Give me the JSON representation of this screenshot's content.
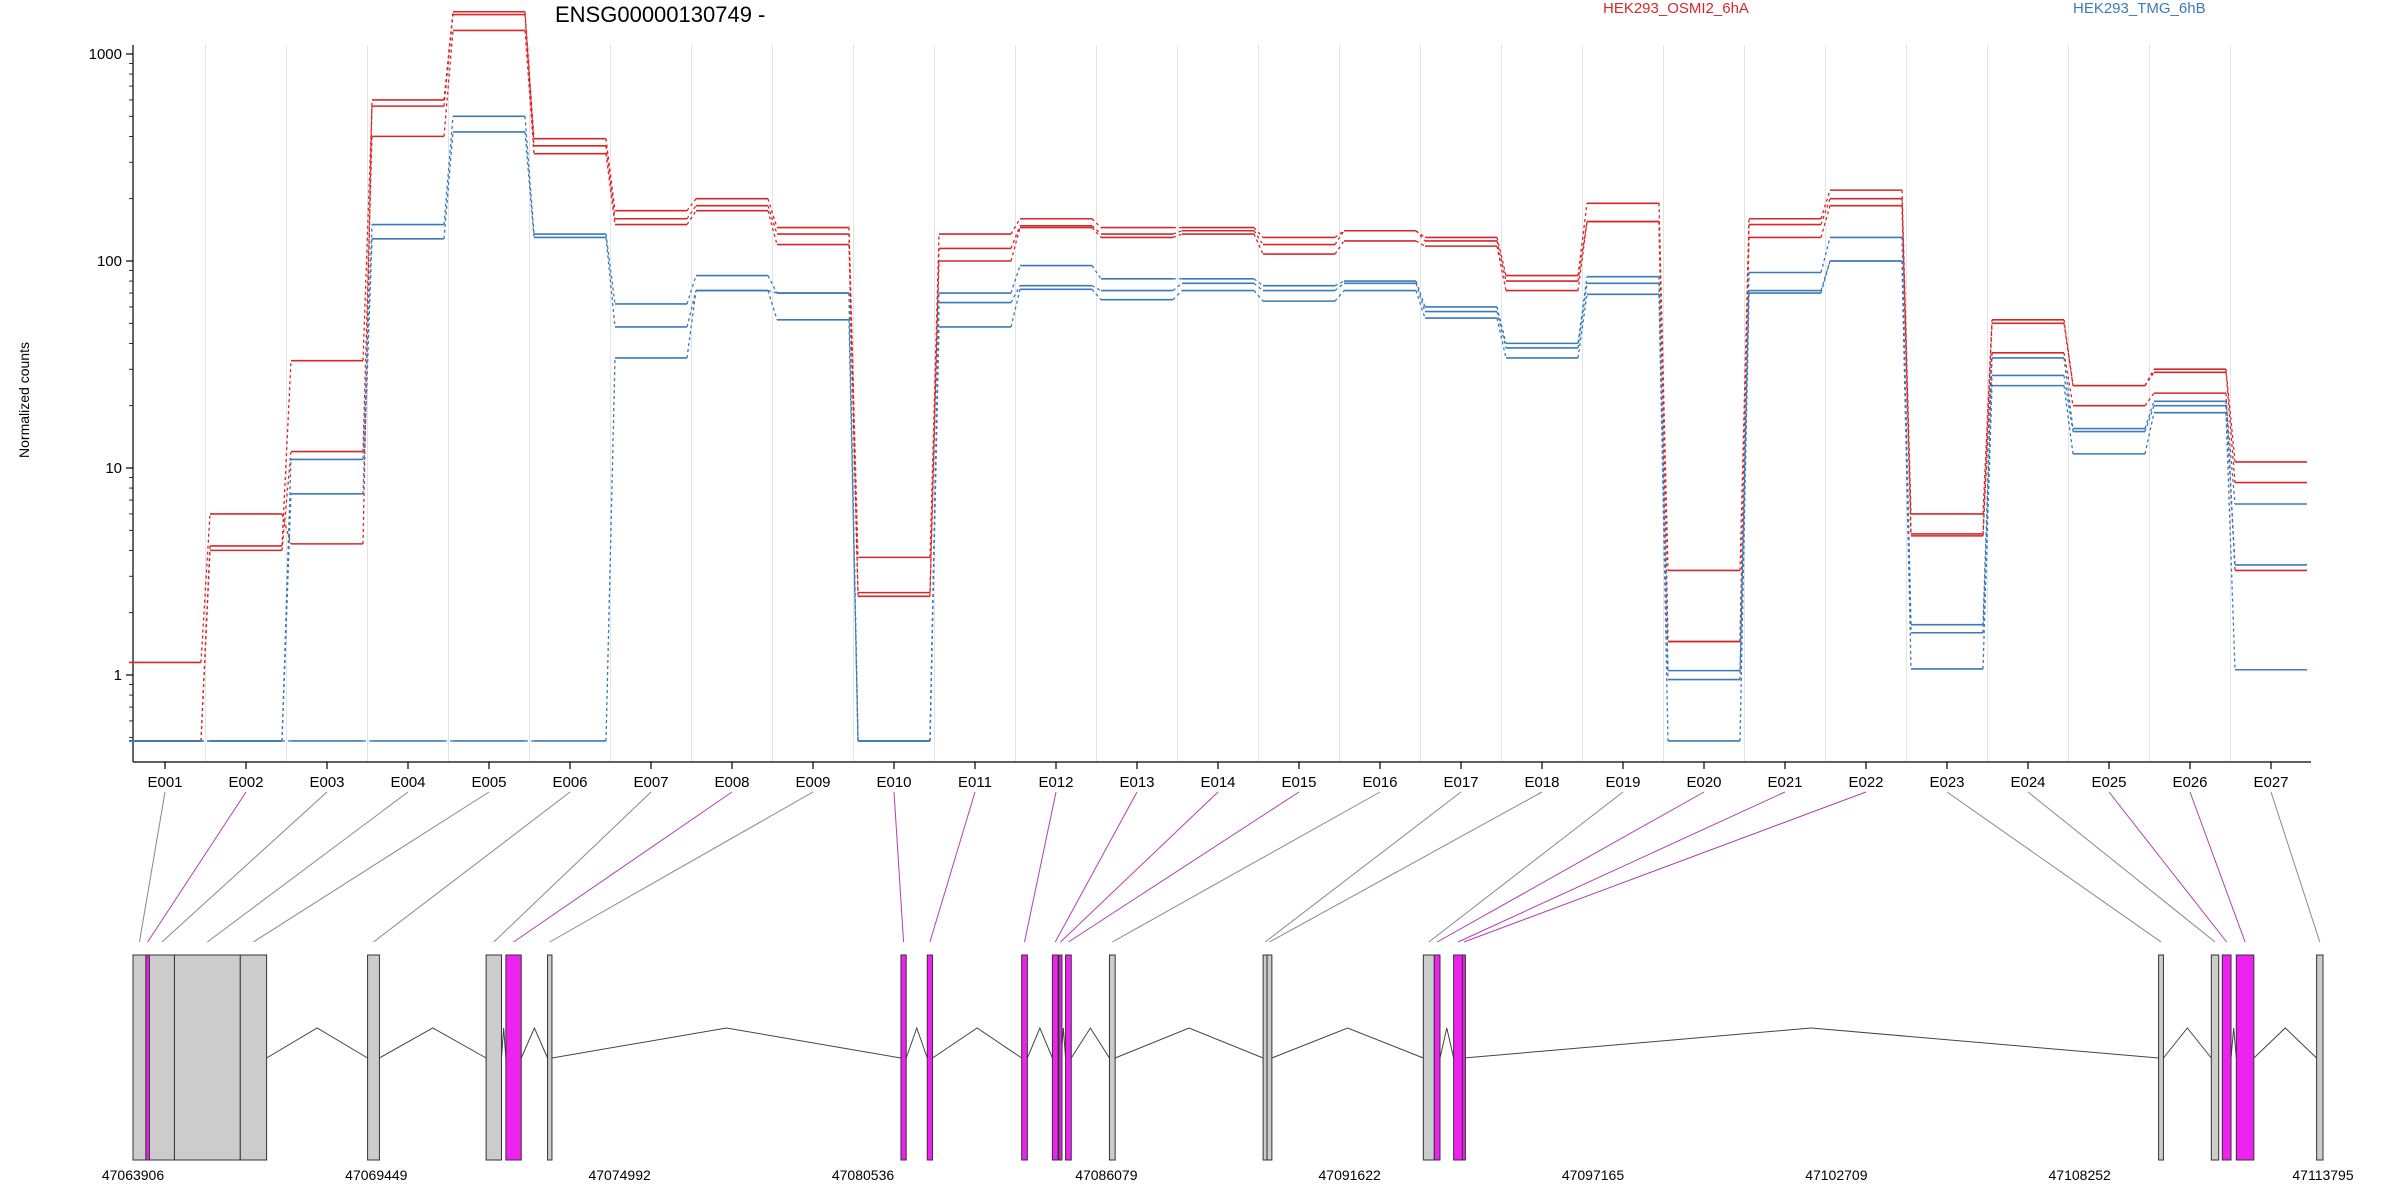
{
  "title": "ENSG00000130749 -",
  "legend": [
    {
      "label": "HEK293_OSMI2_6hA",
      "color": "#d62728"
    },
    {
      "label": "HEK293_TMG_6hB",
      "color": "#3a7ab8"
    }
  ],
  "chart_data": {
    "type": "line",
    "ylabel": "Normalized counts",
    "yscale": "log",
    "yticks": [
      "1",
      "10",
      "100",
      "1000"
    ],
    "categories": [
      "E001",
      "E002",
      "E003",
      "E004",
      "E005",
      "E006",
      "E007",
      "E008",
      "E009",
      "E010",
      "E011",
      "E012",
      "E013",
      "E014",
      "E015",
      "E016",
      "E017",
      "E018",
      "E019",
      "E020",
      "E021",
      "E022",
      "E023",
      "E024",
      "E025",
      "E026",
      "E027"
    ],
    "series": [
      {
        "group": "HEK293_OSMI2_6hA",
        "color": "#d62728",
        "values": [
          1.15,
          6,
          4.3,
          600,
          1600,
          390,
          175,
          200,
          145,
          3.7,
          135,
          160,
          145,
          145,
          130,
          140,
          130,
          85,
          190,
          3.2,
          160,
          220,
          6,
          52,
          25,
          30,
          10.7
        ]
      },
      {
        "group": "HEK293_OSMI2_6hA",
        "color": "#d62728",
        "values": [
          0.48,
          4.2,
          33,
          560,
          1550,
          360,
          160,
          185,
          135,
          2.5,
          115,
          148,
          135,
          140,
          120,
          140,
          125,
          80,
          155,
          1.45,
          150,
          200,
          4.8,
          50,
          25,
          29,
          8.5
        ]
      },
      {
        "group": "HEK293_OSMI2_6hA",
        "color": "#d62728",
        "values": [
          0.48,
          4.0,
          12,
          400,
          1300,
          330,
          150,
          175,
          120,
          2.4,
          100,
          145,
          130,
          135,
          108,
          125,
          118,
          72,
          155,
          1.45,
          130,
          185,
          4.7,
          36,
          20,
          23,
          3.2
        ]
      },
      {
        "group": "HEK293_TMG_6hB",
        "color": "#3a7ab8",
        "values": [
          0.48,
          0.48,
          11,
          150,
          500,
          135,
          62,
          85,
          70,
          0.48,
          70,
          95,
          82,
          82,
          76,
          80,
          60,
          40,
          84,
          1.05,
          88,
          130,
          1.75,
          34,
          15.5,
          21,
          6.7
        ]
      },
      {
        "group": "HEK293_TMG_6hB",
        "color": "#3a7ab8",
        "values": [
          0.48,
          0.48,
          7.5,
          128,
          420,
          130,
          48,
          72,
          70,
          0.48,
          63,
          76,
          72,
          78,
          72,
          78,
          57,
          38,
          78,
          0.95,
          72,
          100,
          1.6,
          28,
          15,
          20,
          3.4
        ]
      },
      {
        "group": "HEK293_TMG_6hB",
        "color": "#3a7ab8",
        "values": [
          0.48,
          0.48,
          0.48,
          0.48,
          0.48,
          0.48,
          34,
          72,
          52,
          0.48,
          48,
          73,
          65,
          72,
          64,
          72,
          53,
          34,
          69,
          0.48,
          70,
          100,
          1.07,
          25,
          11.7,
          18.5,
          1.06
        ]
      }
    ],
    "gene_model": {
      "genomic_ticks": [
        "47063906",
        "47069449",
        "47074992",
        "47080536",
        "47086079",
        "47091622",
        "47097165",
        "47102709",
        "47108252",
        "47113795"
      ],
      "exons": [
        {
          "id": "E001",
          "start": 47063906,
          "end": 47064200,
          "tested": true
        },
        {
          "id": "E002",
          "start": 47064200,
          "end": 47064280,
          "tested": false
        },
        {
          "id": "E003",
          "start": 47064280,
          "end": 47064850,
          "tested": true
        },
        {
          "id": "E004",
          "start": 47064850,
          "end": 47066350,
          "tested": true
        },
        {
          "id": "E005",
          "start": 47066350,
          "end": 47066950,
          "tested": true
        },
        {
          "id": "E006",
          "start": 47069250,
          "end": 47069520,
          "tested": true
        },
        {
          "id": "E007",
          "start": 47071950,
          "end": 47072300,
          "tested": true
        },
        {
          "id": "E008",
          "start": 47072400,
          "end": 47072750,
          "tested": false
        },
        {
          "id": "E009",
          "start": 47073350,
          "end": 47073450,
          "tested": true
        },
        {
          "id": "E010",
          "start": 47081400,
          "end": 47081520,
          "tested": false
        },
        {
          "id": "E011",
          "start": 47082000,
          "end": 47082120,
          "tested": false
        },
        {
          "id": "E012",
          "start": 47084150,
          "end": 47084280,
          "tested": false
        },
        {
          "id": "E013",
          "start": 47084850,
          "end": 47084980,
          "tested": false
        },
        {
          "id": "E014",
          "start": 47085000,
          "end": 47085050,
          "tested": false
        },
        {
          "id": "E015",
          "start": 47085150,
          "end": 47085280,
          "tested": false
        },
        {
          "id": "E016",
          "start": 47086150,
          "end": 47086280,
          "tested": true
        },
        {
          "id": "E017",
          "start": 47089650,
          "end": 47089740,
          "tested": true
        },
        {
          "id": "E018",
          "start": 47089740,
          "end": 47089850,
          "tested": true
        },
        {
          "id": "E019",
          "start": 47093300,
          "end": 47093550,
          "tested": true
        },
        {
          "id": "E020",
          "start": 47093550,
          "end": 47093680,
          "tested": false
        },
        {
          "id": "E021",
          "start": 47093990,
          "end": 47094190,
          "tested": false
        },
        {
          "id": "E022",
          "start": 47094190,
          "end": 47094220,
          "tested": false
        },
        {
          "id": "E023",
          "start": 47110050,
          "end": 47110160,
          "tested": true
        },
        {
          "id": "E024",
          "start": 47111250,
          "end": 47111420,
          "tested": true
        },
        {
          "id": "E025",
          "start": 47111500,
          "end": 47111700,
          "tested": false
        },
        {
          "id": "E026",
          "start": 47111820,
          "end": 47112220,
          "tested": false
        },
        {
          "id": "E027",
          "start": 47113650,
          "end": 47113795,
          "tested": true
        }
      ]
    }
  }
}
